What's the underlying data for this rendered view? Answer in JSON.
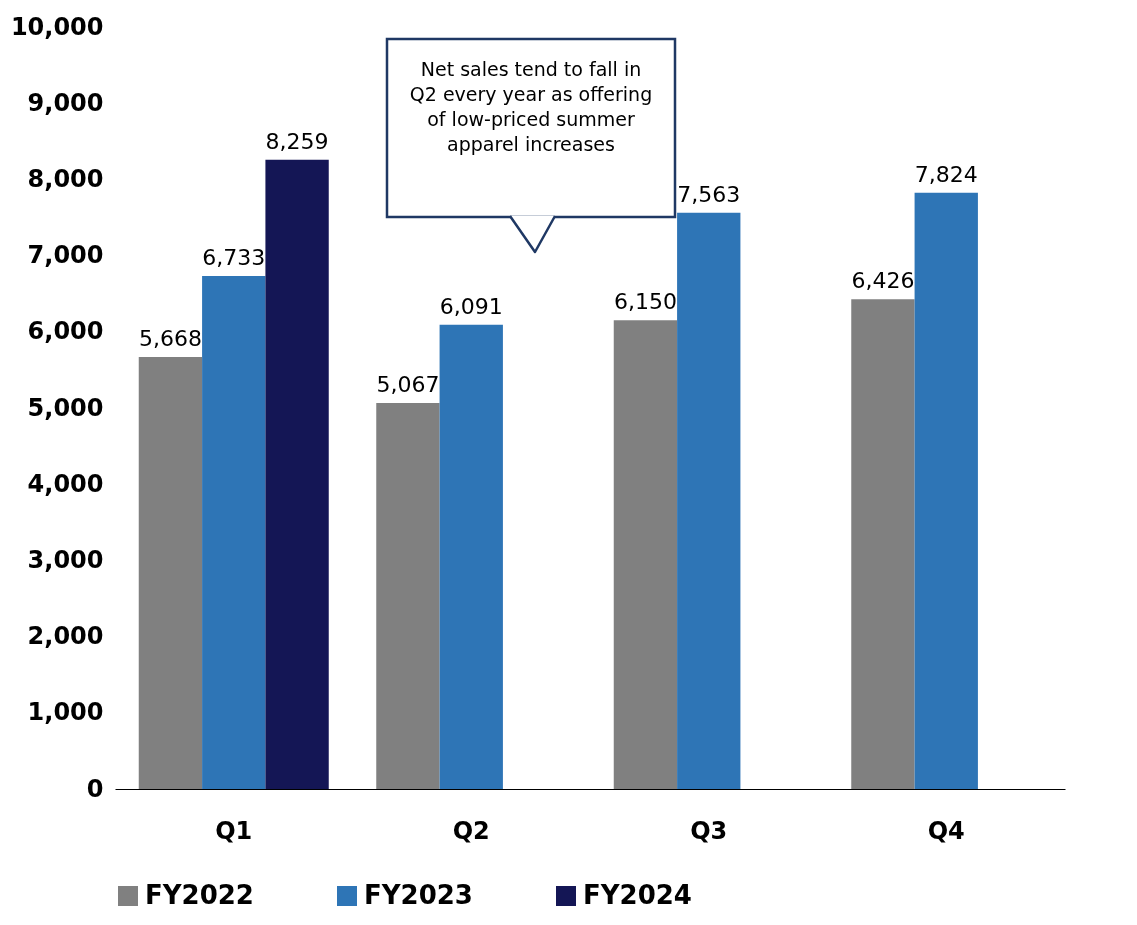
{
  "chart_data": {
    "type": "bar",
    "categories": [
      "Q1",
      "Q2",
      "Q3",
      "Q4"
    ],
    "series": [
      {
        "name": "FY2022",
        "color": "#808080",
        "values": [
          5668,
          5067,
          6150,
          6426
        ],
        "value_labels": [
          "5,668",
          "5,067",
          "6,150",
          "6,426"
        ]
      },
      {
        "name": "FY2023",
        "color": "#2e75b6",
        "values": [
          6733,
          6091,
          7563,
          7824
        ],
        "value_labels": [
          "6,733",
          "6,091",
          "7,563",
          "7,824"
        ]
      },
      {
        "name": "FY2024",
        "color": "#141655",
        "values": [
          8259,
          null,
          null,
          null
        ],
        "value_labels": [
          "8,259",
          null,
          null,
          null
        ]
      }
    ],
    "ylim": [
      0,
      10000
    ],
    "yticks": [
      0,
      {
        "value": 1000,
        "label": "1,000"
      },
      {
        "value": 2000,
        "label": "2,000"
      },
      {
        "value": 3000,
        "label": "3,000"
      },
      {
        "value": 4000,
        "label": "4,000"
      },
      {
        "value": 5000,
        "label": "5,000"
      },
      {
        "value": 6000,
        "label": "6,000"
      },
      {
        "value": 7000,
        "label": "7,000"
      },
      {
        "value": 8000,
        "label": "8,000"
      },
      {
        "value": 9000,
        "label": "9,000"
      },
      {
        "value": 10000,
        "label": "10,000"
      }
    ],
    "grid": false,
    "legend": "bottom",
    "annotations": [
      "Net sales tend to fall in Q2 every year as offering of low-priced summer apparel increases"
    ]
  }
}
